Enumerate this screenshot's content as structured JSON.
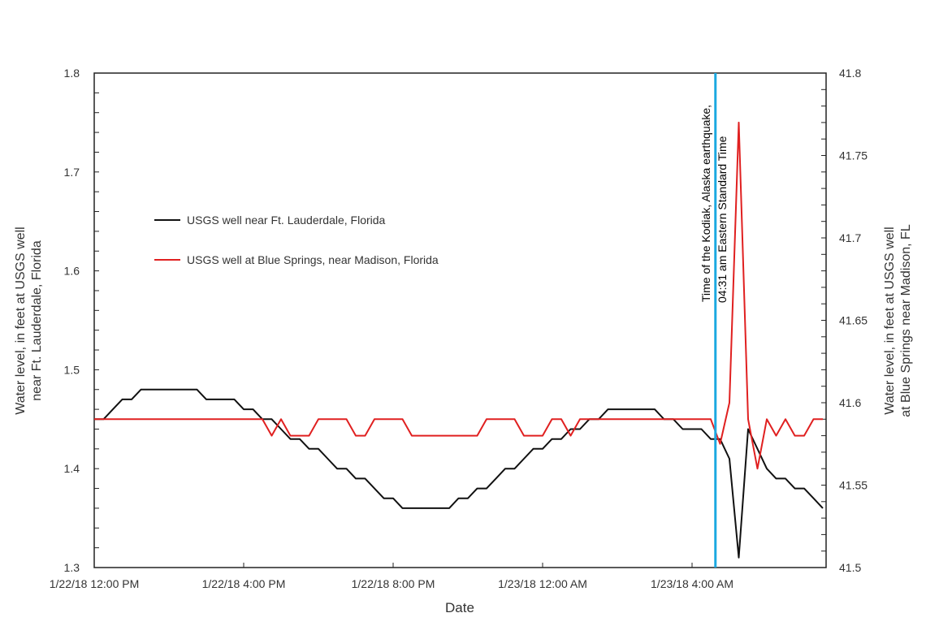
{
  "chart_data": {
    "type": "line",
    "xlabel": "Date",
    "ylabel_left": "Water level, in feet at USGS well near Ft. Lauderdale, Florida",
    "ylabel_left_lines": [
      "Water level, in feet at USGS well",
      "near Ft. Lauderdale, Florida"
    ],
    "ylabel_right": "Water level, in feet at USGS well at Blue Springs near Madison, FL",
    "ylabel_right_lines": [
      "Water level, in feet at USGS well",
      "at Blue Springs near Madison, FL"
    ],
    "ylim_left": [
      1.3,
      1.8
    ],
    "ylim_right": [
      41.5,
      41.8
    ],
    "xlim": [
      "2018-01-22 12:00",
      "2018-01-23 07:30"
    ],
    "left_ticks": [
      "1.3",
      "1.4",
      "1.5",
      "1.6",
      "1.7",
      "1.8"
    ],
    "right_ticks": [
      "41.5",
      "41.55",
      "41.6",
      "41.65",
      "41.7",
      "41.75",
      "41.8"
    ],
    "x_ticks": [
      {
        "time": "2018-01-22 12:00",
        "label": "1/22/18 12:00 PM"
      },
      {
        "time": "2018-01-22 16:00",
        "label": "1/22/18 4:00 PM"
      },
      {
        "time": "2018-01-22 20:00",
        "label": "1/22/18 8:00 PM"
      },
      {
        "time": "2018-01-23 00:00",
        "label": "1/23/18 12:00 AM"
      },
      {
        "time": "2018-01-23 04:00",
        "label": "1/23/18 4:00 AM"
      }
    ],
    "grid": false,
    "legend_position": "upper-left",
    "annotation": {
      "time": "2018-01-23 04:31",
      "lines": [
        "Time of the Kodiak, Alaska earthquake,",
        "04:31 am Eastern Standard Time"
      ],
      "color": "#1ca9e1"
    },
    "times": [
      "2018-01-22 12:00",
      "2018-01-22 12:15",
      "2018-01-22 12:30",
      "2018-01-22 12:45",
      "2018-01-22 13:00",
      "2018-01-22 13:15",
      "2018-01-22 13:30",
      "2018-01-22 13:45",
      "2018-01-22 14:00",
      "2018-01-22 14:15",
      "2018-01-22 14:30",
      "2018-01-22 14:45",
      "2018-01-22 15:00",
      "2018-01-22 15:15",
      "2018-01-22 15:30",
      "2018-01-22 15:45",
      "2018-01-22 16:00",
      "2018-01-22 16:15",
      "2018-01-22 16:30",
      "2018-01-22 16:45",
      "2018-01-22 17:00",
      "2018-01-22 17:15",
      "2018-01-22 17:30",
      "2018-01-22 17:45",
      "2018-01-22 18:00",
      "2018-01-22 18:15",
      "2018-01-22 18:30",
      "2018-01-22 18:45",
      "2018-01-22 19:00",
      "2018-01-22 19:15",
      "2018-01-22 19:30",
      "2018-01-22 19:45",
      "2018-01-22 20:00",
      "2018-01-22 20:15",
      "2018-01-22 20:30",
      "2018-01-22 20:45",
      "2018-01-22 21:00",
      "2018-01-22 21:15",
      "2018-01-22 21:30",
      "2018-01-22 21:45",
      "2018-01-22 22:00",
      "2018-01-22 22:15",
      "2018-01-22 22:30",
      "2018-01-22 22:45",
      "2018-01-22 23:00",
      "2018-01-22 23:15",
      "2018-01-22 23:30",
      "2018-01-22 23:45",
      "2018-01-23 00:00",
      "2018-01-23 00:15",
      "2018-01-23 00:30",
      "2018-01-23 00:45",
      "2018-01-23 01:00",
      "2018-01-23 01:15",
      "2018-01-23 01:30",
      "2018-01-23 01:45",
      "2018-01-23 02:00",
      "2018-01-23 02:15",
      "2018-01-23 02:30",
      "2018-01-23 02:45",
      "2018-01-23 03:00",
      "2018-01-23 03:15",
      "2018-01-23 03:30",
      "2018-01-23 03:45",
      "2018-01-23 04:00",
      "2018-01-23 04:15",
      "2018-01-23 04:30",
      "2018-01-23 04:45",
      "2018-01-23 05:00",
      "2018-01-23 05:15",
      "2018-01-23 05:30",
      "2018-01-23 05:45",
      "2018-01-23 06:00",
      "2018-01-23 06:15",
      "2018-01-23 06:30",
      "2018-01-23 06:45",
      "2018-01-23 07:00",
      "2018-01-23 07:15",
      "2018-01-23 07:30"
    ],
    "series": [
      {
        "name": "USGS well near Ft. Lauderdale, Florida",
        "axis": "left",
        "color": "#111111",
        "values": [
          1.45,
          1.45,
          1.46,
          1.47,
          1.47,
          1.48,
          1.48,
          1.48,
          1.48,
          1.48,
          1.48,
          1.48,
          1.47,
          1.47,
          1.47,
          1.47,
          1.46,
          1.46,
          1.45,
          1.45,
          1.44,
          1.43,
          1.43,
          1.42,
          1.42,
          1.41,
          1.4,
          1.4,
          1.39,
          1.39,
          1.38,
          1.37,
          1.37,
          1.36,
          1.36,
          1.36,
          1.36,
          1.36,
          1.36,
          1.37,
          1.37,
          1.38,
          1.38,
          1.39,
          1.4,
          1.4,
          1.41,
          1.42,
          1.42,
          1.43,
          1.43,
          1.44,
          1.44,
          1.45,
          1.45,
          1.46,
          1.46,
          1.46,
          1.46,
          1.46,
          1.46,
          1.45,
          1.45,
          1.44,
          1.44,
          1.44,
          1.43,
          1.43,
          1.41,
          1.31,
          1.44,
          1.42,
          1.4,
          1.39,
          1.39,
          1.38,
          1.38,
          1.37,
          1.36
        ]
      },
      {
        "name": "USGS well at Blue Springs, near Madison, Florida",
        "axis": "right",
        "color": "#e02020",
        "values": [
          41.59,
          41.59,
          41.59,
          41.59,
          41.59,
          41.59,
          41.59,
          41.59,
          41.59,
          41.59,
          41.59,
          41.59,
          41.59,
          41.59,
          41.59,
          41.59,
          41.59,
          41.59,
          41.59,
          41.58,
          41.59,
          41.58,
          41.58,
          41.58,
          41.59,
          41.59,
          41.59,
          41.59,
          41.58,
          41.58,
          41.59,
          41.59,
          41.59,
          41.59,
          41.58,
          41.58,
          41.58,
          41.58,
          41.58,
          41.58,
          41.58,
          41.58,
          41.59,
          41.59,
          41.59,
          41.59,
          41.58,
          41.58,
          41.58,
          41.59,
          41.59,
          41.58,
          41.59,
          41.59,
          41.59,
          41.59,
          41.59,
          41.59,
          41.59,
          41.59,
          41.59,
          41.59,
          41.59,
          41.59,
          41.59,
          41.59,
          41.59,
          41.575,
          41.6,
          41.77,
          41.59,
          41.56,
          41.59,
          41.58,
          41.59,
          41.58,
          41.58,
          41.59,
          41.59
        ]
      }
    ]
  }
}
